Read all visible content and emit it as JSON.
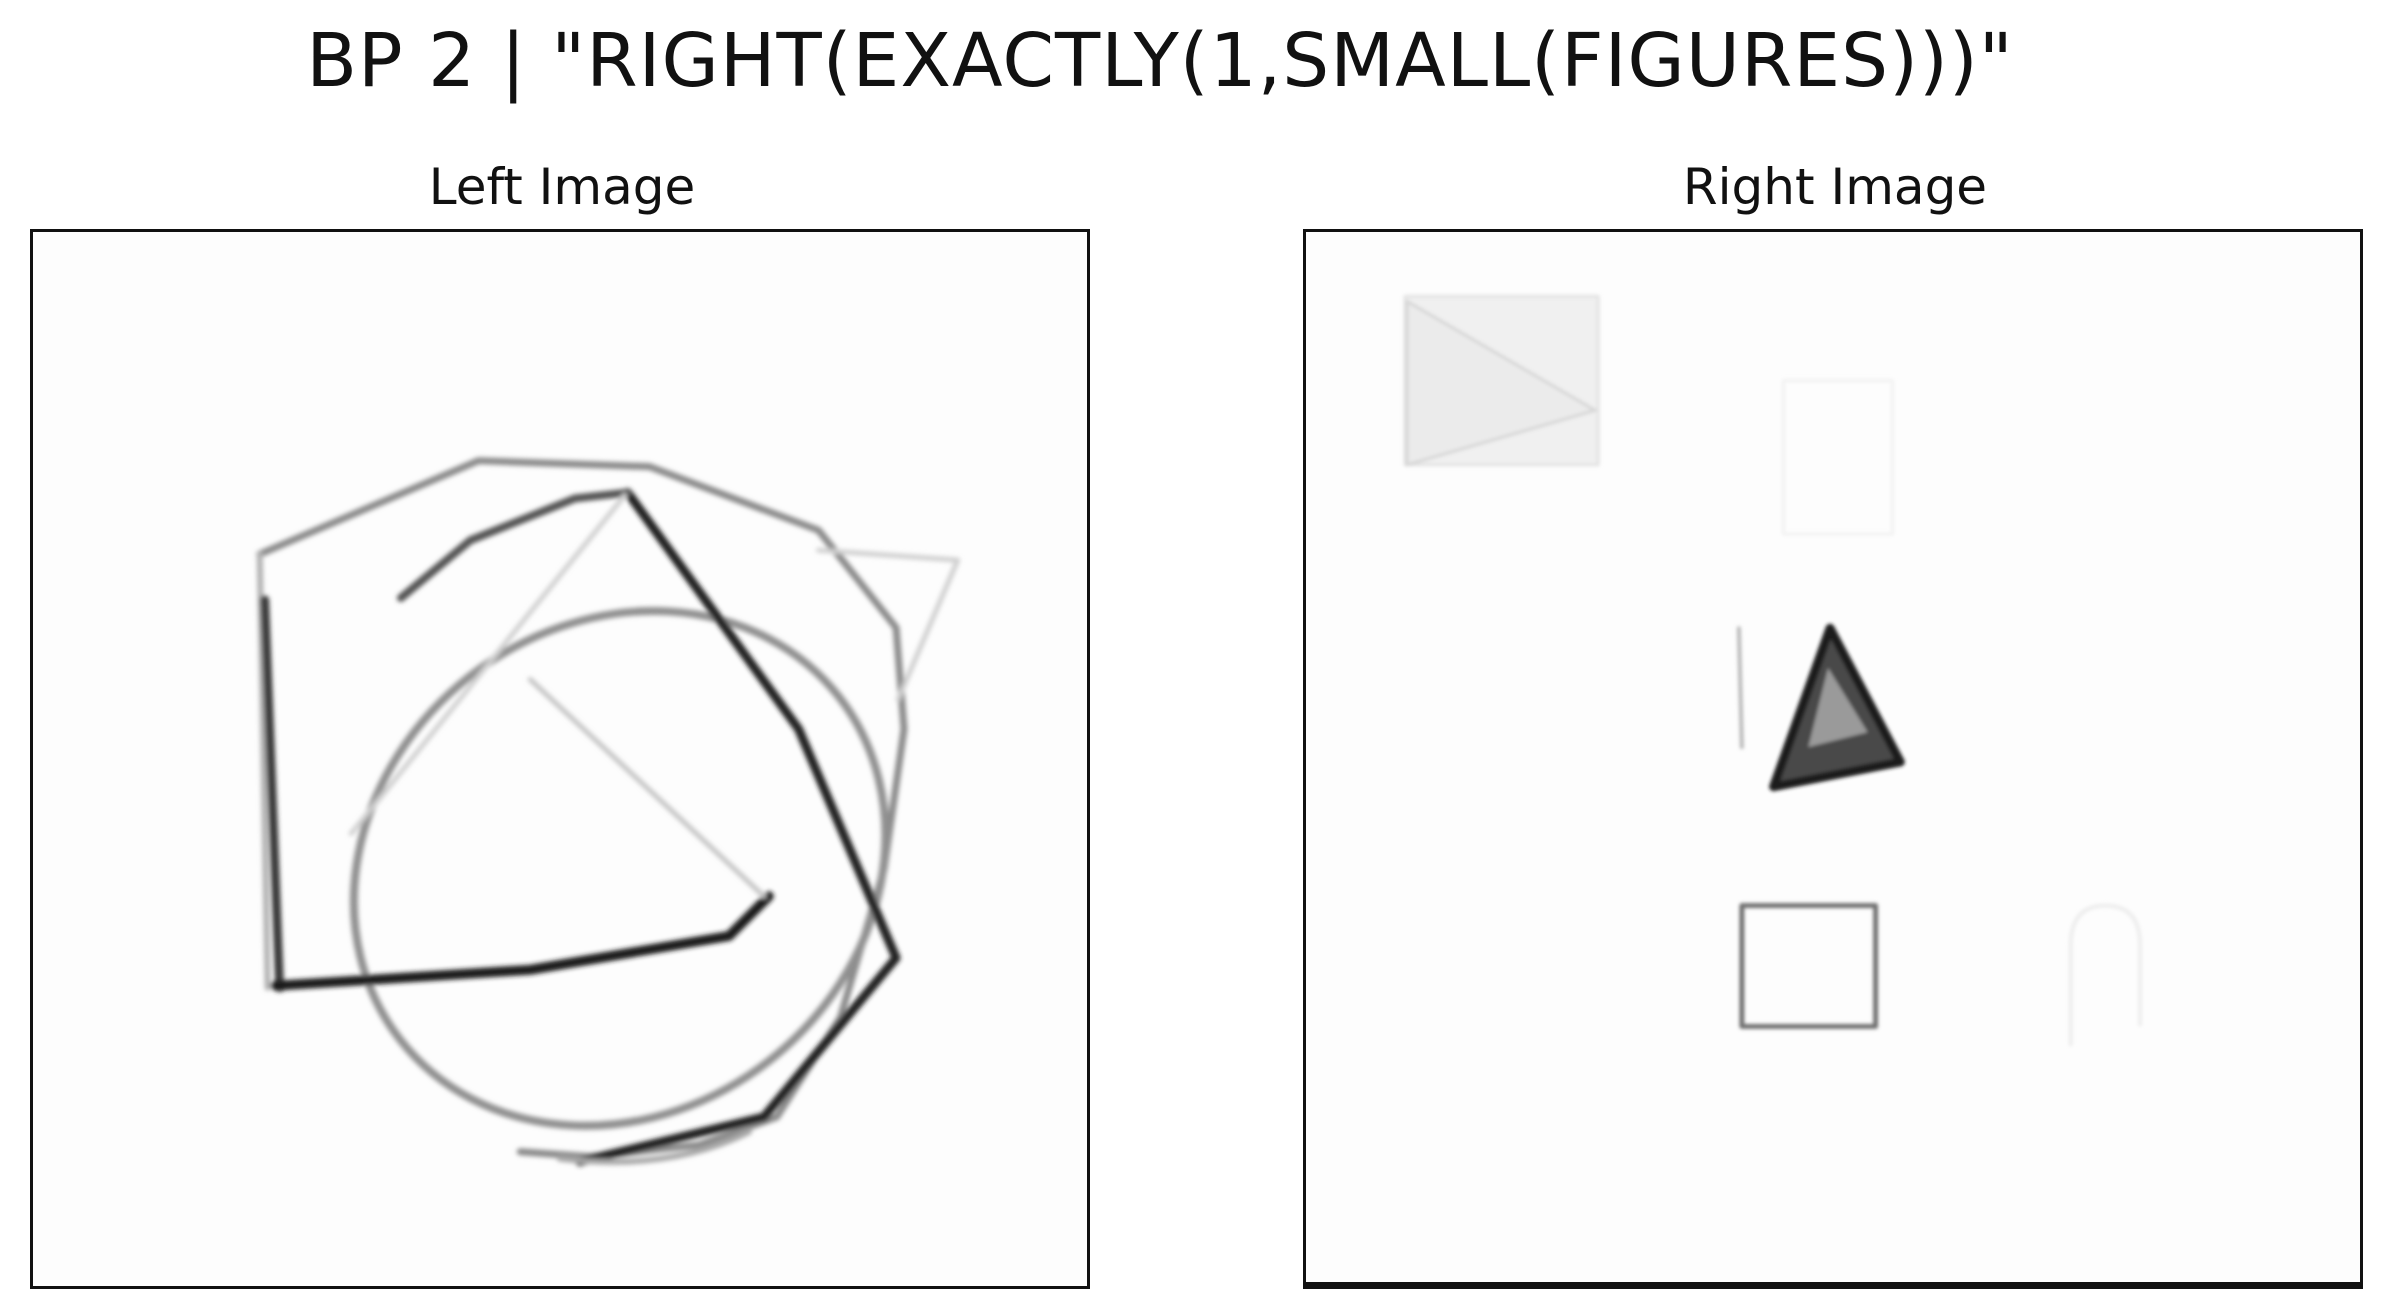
{
  "figure": {
    "title": "BP 2 | \"RIGHT(EXACTLY(1,SMALL(FIGURES)))\""
  },
  "panels": {
    "left": {
      "title": "Left Image"
    },
    "right": {
      "title": "Right Image"
    }
  },
  "colors": {
    "background": "#ffffff",
    "frame": "#111111",
    "stroke_dark": "#1a1a1a",
    "stroke_mid": "#777777",
    "stroke_faint": "#cccccc"
  }
}
